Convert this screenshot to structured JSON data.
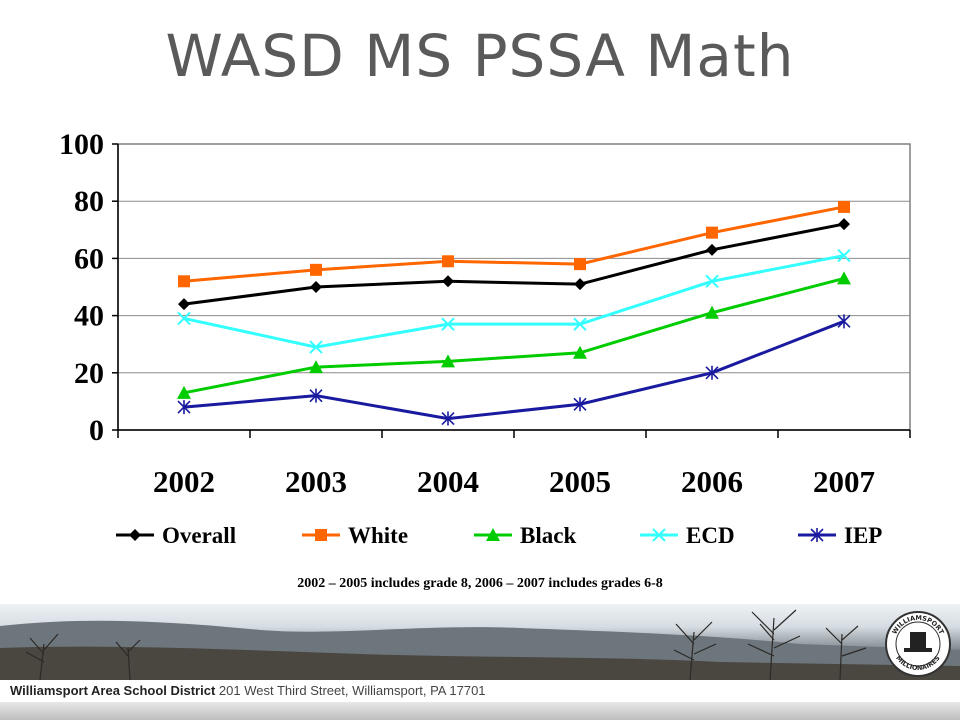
{
  "title": "WASD MS PSSA Math",
  "note": "2002 – 2005 includes grade 8,  2006 – 2007 includes grades 6-8",
  "footer": {
    "org": "Williamsport Area School District",
    "address": "201 West Third Street, Williamsport, PA 17701"
  },
  "logo": {
    "top_text": "WILLIAMSPORT",
    "bottom_text": "MILLIONAIRES"
  },
  "colors": {
    "overall": "#000000",
    "white": "#ff6600",
    "black": "#00cc00",
    "ecd": "#33ffff",
    "iep": "#1a1aa0",
    "title": "#5a5a5a"
  },
  "chart_data": {
    "type": "line",
    "categories": [
      "2002",
      "2003",
      "2004",
      "2005",
      "2006",
      "2007"
    ],
    "ylim": [
      0,
      100
    ],
    "yticks": [
      "0",
      "20",
      "40",
      "60",
      "80",
      "100"
    ],
    "grid": true,
    "legend_position": "bottom",
    "series": [
      {
        "name": "Overall",
        "color": "#000000",
        "marker": "diamond",
        "values": [
          44,
          50,
          52,
          51,
          63,
          72
        ]
      },
      {
        "name": "White",
        "color": "#ff6600",
        "marker": "square",
        "values": [
          52,
          56,
          59,
          58,
          69,
          78
        ]
      },
      {
        "name": "Black",
        "color": "#00cc00",
        "marker": "triangle",
        "values": [
          13,
          22,
          24,
          27,
          41,
          53
        ]
      },
      {
        "name": "ECD",
        "color": "#33ffff",
        "marker": "x",
        "values": [
          39,
          29,
          37,
          37,
          52,
          61
        ]
      },
      {
        "name": "IEP",
        "color": "#1a1aa0",
        "marker": "star",
        "values": [
          8,
          12,
          4,
          9,
          20,
          38
        ]
      }
    ]
  }
}
